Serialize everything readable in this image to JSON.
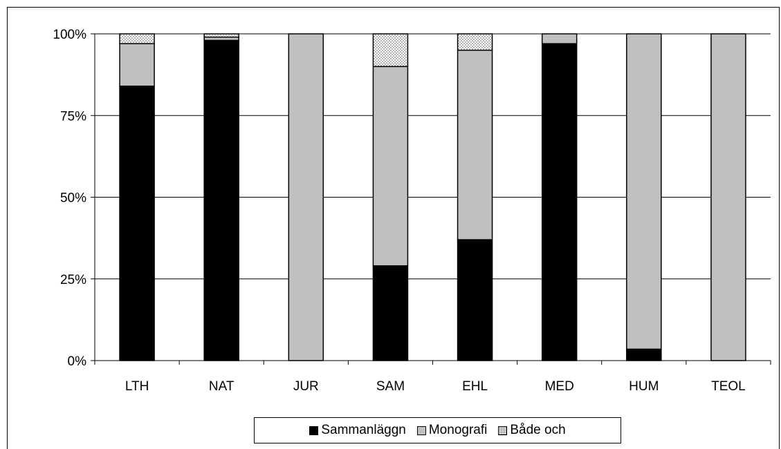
{
  "chart_data": {
    "type": "bar",
    "stacked": true,
    "percent": true,
    "categories": [
      "LTH",
      "NAT",
      "JUR",
      "SAM",
      "EHL",
      "MED",
      "HUM",
      "TEOL"
    ],
    "series": [
      {
        "name": "Sammanläggn",
        "color": "#000000",
        "values": [
          84,
          98,
          0,
          29,
          37,
          97,
          3.5,
          0
        ]
      },
      {
        "name": "Monografi",
        "color": "#c0c0c0",
        "values": [
          13,
          1,
          100,
          61,
          58,
          3,
          96.5,
          100
        ]
      },
      {
        "name": "Både och",
        "color": "#ffffff",
        "pattern": "dotted",
        "values": [
          3,
          1,
          0,
          10,
          5,
          0,
          0,
          0
        ]
      }
    ],
    "y_ticks": [
      "0%",
      "25%",
      "50%",
      "75%",
      "100%"
    ],
    "ylim": [
      0,
      100
    ],
    "grid": true,
    "legend_position": "bottom",
    "title": "",
    "xlabel": "",
    "ylabel": ""
  }
}
